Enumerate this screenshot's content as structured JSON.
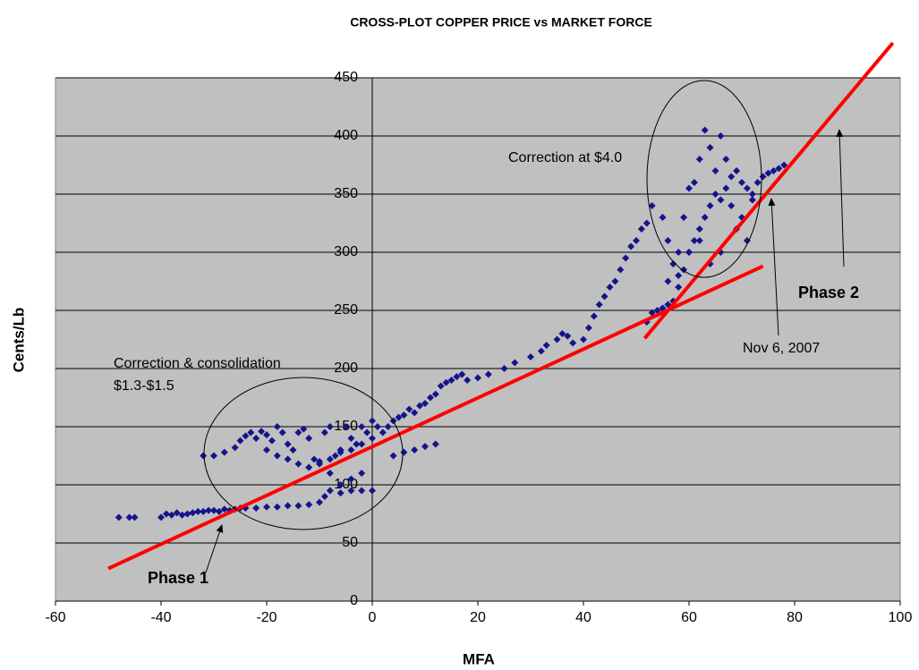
{
  "chart_data": {
    "type": "scatter",
    "title": "CROSS-PLOT COPPER PRICE vs MARKET FORCE",
    "xlabel": "MFA",
    "ylabel": "Cents/Lb",
    "xlim": [
      -60,
      100
    ],
    "xticks": [
      -60,
      -40,
      -20,
      0,
      20,
      40,
      60,
      80,
      100
    ],
    "ylim": [
      0,
      450
    ],
    "yticks": [
      0,
      50,
      100,
      150,
      200,
      250,
      300,
      350,
      400,
      450
    ],
    "grid": true,
    "color": "#14148c",
    "x": [
      -48,
      -46,
      -45,
      -40,
      -39,
      -38,
      -37,
      -36,
      -35,
      -34,
      -33,
      -32,
      -31,
      -30,
      -29,
      -28,
      -27,
      -26,
      -25,
      -24,
      -22,
      -20,
      -18,
      -16,
      -14,
      -12,
      -10,
      -9,
      -8,
      -6,
      -4,
      -2,
      0,
      -32,
      -30,
      -28,
      -26,
      -25,
      -24,
      -23,
      -22,
      -21,
      -20,
      -19,
      -18,
      -17,
      -16,
      -15,
      -14,
      -13,
      -12,
      -11,
      -10,
      -9,
      -8,
      -7,
      -6,
      -5,
      -4,
      -3,
      -2,
      -1,
      0,
      1,
      -20,
      -18,
      -16,
      -14,
      -12,
      -10,
      -8,
      -6,
      -4,
      -2,
      0,
      2,
      3,
      4,
      5,
      6,
      7,
      8,
      9,
      10,
      11,
      12,
      13,
      14,
      15,
      16,
      17,
      18,
      4,
      6,
      8,
      10,
      12,
      -6,
      -4,
      -2,
      -8,
      20,
      22,
      25,
      27,
      30,
      32,
      33,
      35,
      36,
      37,
      38,
      40,
      41,
      42,
      43,
      44,
      45,
      46,
      47,
      48,
      49,
      50,
      51,
      52,
      52,
      53,
      54,
      55,
      56,
      57,
      58,
      59,
      60,
      61,
      62,
      63,
      64,
      65,
      66,
      67,
      68,
      69,
      70,
      71,
      72,
      73,
      74,
      75,
      76,
      77,
      78,
      53,
      55,
      56,
      57,
      58,
      59,
      60,
      61,
      62,
      63,
      64,
      65,
      66,
      67,
      68,
      69,
      70,
      71,
      72,
      56,
      58,
      60,
      62,
      64,
      66
    ],
    "values": [
      72,
      72,
      72,
      72,
      75,
      74,
      76,
      74,
      75,
      76,
      77,
      77,
      78,
      78,
      77,
      79,
      78,
      79,
      80,
      80,
      80,
      81,
      81,
      82,
      82,
      83,
      85,
      90,
      95,
      93,
      95,
      95,
      95,
      125,
      125,
      128,
      132,
      138,
      142,
      145,
      140,
      146,
      143,
      138,
      150,
      145,
      135,
      130,
      145,
      148,
      140,
      122,
      118,
      145,
      150,
      125,
      130,
      150,
      140,
      135,
      150,
      145,
      155,
      150,
      130,
      125,
      122,
      118,
      115,
      120,
      122,
      128,
      130,
      135,
      140,
      145,
      150,
      155,
      158,
      160,
      165,
      162,
      168,
      170,
      175,
      178,
      185,
      188,
      190,
      193,
      195,
      190,
      125,
      128,
      130,
      133,
      135,
      100,
      105,
      110,
      110,
      192,
      195,
      200,
      205,
      210,
      215,
      220,
      225,
      230,
      228,
      222,
      225,
      235,
      245,
      255,
      262,
      270,
      275,
      285,
      295,
      305,
      310,
      320,
      325,
      240,
      248,
      250,
      252,
      255,
      258,
      270,
      285,
      300,
      310,
      320,
      330,
      340,
      350,
      345,
      355,
      365,
      370,
      360,
      355,
      350,
      360,
      365,
      368,
      370,
      372,
      375,
      340,
      330,
      310,
      290,
      300,
      330,
      355,
      360,
      380,
      405,
      390,
      370,
      400,
      380,
      340,
      320,
      330,
      310,
      345,
      275,
      280,
      300,
      310,
      290,
      300
    ],
    "trend_lines": [
      {
        "x": [
          -50,
          74
        ],
        "y": [
          28,
          288
        ],
        "color": "#ff0000"
      },
      {
        "x": [
          51.6,
          98.6
        ],
        "y": [
          226,
          480
        ],
        "color": "#ff0000"
      }
    ],
    "annotations": [
      "Correction at $4.0",
      "Correction & consolidation",
      "$1.3-$1.5",
      "Nov 6, 2007",
      "Phase 2",
      "Phase 1"
    ]
  }
}
